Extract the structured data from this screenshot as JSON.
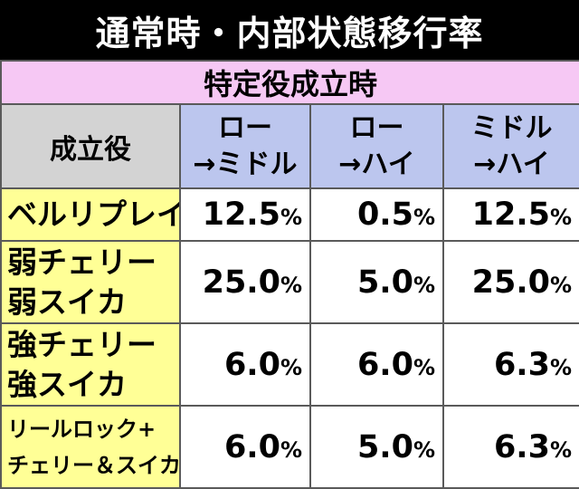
{
  "title": "通常時・内部状態移行率",
  "subtitle": "特定役成立時",
  "table": {
    "label_header": "成立役",
    "columns": [
      {
        "line1": "ロー",
        "line2": "→ミドル"
      },
      {
        "line1": "ロー",
        "line2": "→ハイ"
      },
      {
        "line1": "ミドル",
        "line2": "→ハイ"
      }
    ],
    "rows": [
      {
        "label_lines": [
          "ベルリプレイ"
        ],
        "values": [
          {
            "num": "12.5",
            "unit": "%"
          },
          {
            "num": "0.5",
            "unit": "%"
          },
          {
            "num": "12.5",
            "unit": "%"
          }
        ]
      },
      {
        "label_lines": [
          "弱チェリー",
          "弱スイカ"
        ],
        "values": [
          {
            "num": "25.0",
            "unit": "%"
          },
          {
            "num": "5.0",
            "unit": "%"
          },
          {
            "num": "25.0",
            "unit": "%"
          }
        ]
      },
      {
        "label_lines": [
          "強チェリー",
          "強スイカ"
        ],
        "values": [
          {
            "num": "6.0",
            "unit": "%"
          },
          {
            "num": "6.0",
            "unit": "%"
          },
          {
            "num": "6.3",
            "unit": "%"
          }
        ]
      },
      {
        "label_lines": [
          "リールロック+",
          "チェリー＆スイカ"
        ],
        "values": [
          {
            "num": "6.0",
            "unit": "%"
          },
          {
            "num": "5.0",
            "unit": "%"
          },
          {
            "num": "6.3",
            "unit": "%"
          }
        ]
      }
    ]
  },
  "colors": {
    "title_bg": "#000000",
    "subtitle_bg": "#f6c8f4",
    "label_header_bg": "#d3d3d3",
    "column_header_bg": "#bcc6ee",
    "row_label_bg": "#ffff96",
    "value_bg": "#ffffff"
  }
}
